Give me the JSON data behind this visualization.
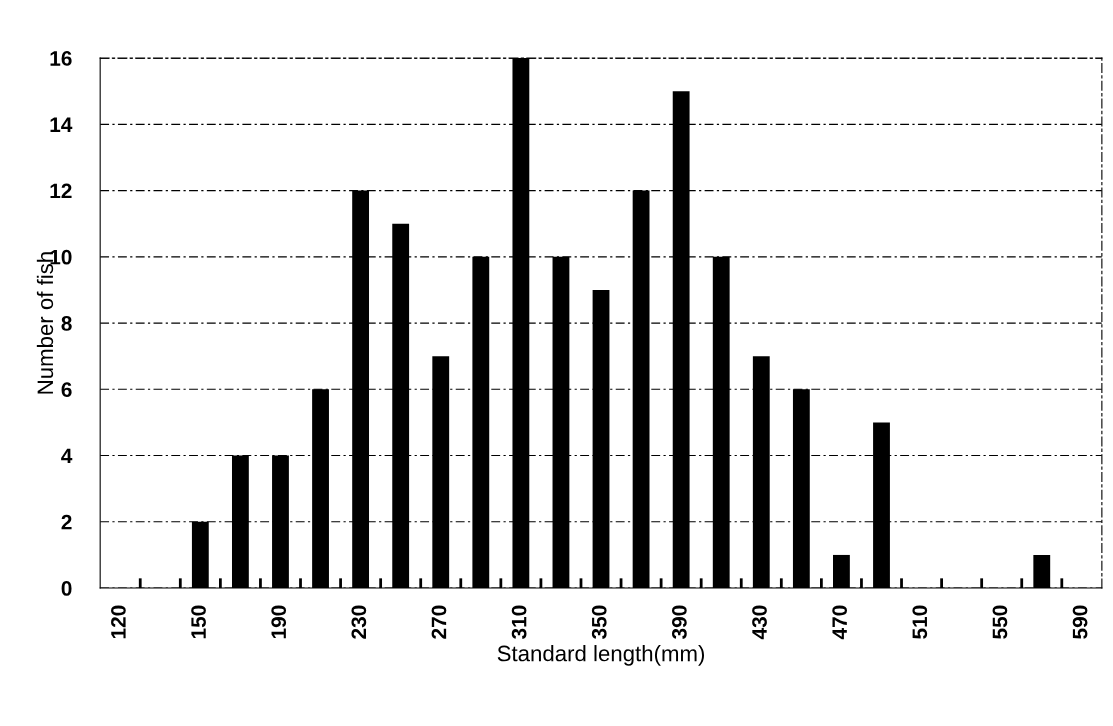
{
  "chart_data": {
    "type": "bar",
    "xlabel": "Standard length(mm)",
    "ylabel": "Number of fish",
    "categories": [
      "120",
      null,
      "150",
      null,
      "190",
      null,
      "230",
      null,
      "270",
      null,
      "310",
      null,
      "350",
      null,
      "390",
      null,
      "430",
      null,
      "470",
      null,
      "510",
      null,
      "550",
      null,
      "590"
    ],
    "values": [
      0,
      0,
      2,
      4,
      4,
      6,
      12,
      11,
      7,
      10,
      16,
      10,
      9,
      12,
      15,
      10,
      7,
      6,
      1,
      5,
      0,
      0,
      0,
      1,
      0
    ],
    "color": "#000000",
    "ylim": [
      0,
      16
    ],
    "yticks": [
      0,
      2,
      4,
      6,
      8,
      10,
      12,
      14,
      16
    ],
    "grid": "y"
  }
}
